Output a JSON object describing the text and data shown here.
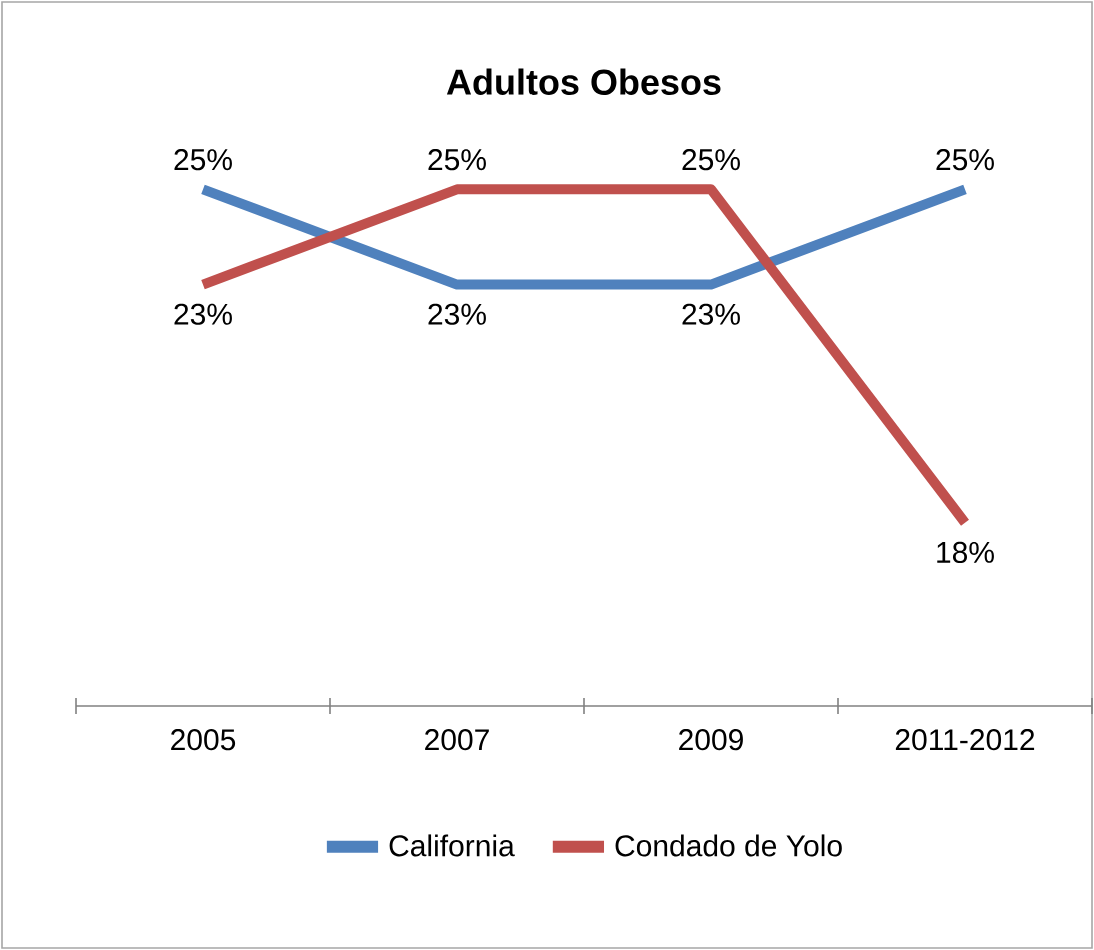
{
  "chart_data": {
    "type": "line",
    "title": "Adultos Obesos",
    "categories": [
      "2005",
      "2007",
      "2009",
      "2011-2012"
    ],
    "series": [
      {
        "name": "California",
        "color": "#4f81bd",
        "values": [
          25,
          23,
          23,
          25
        ],
        "value_labels": [
          "25%",
          "23%",
          "23%",
          "25%"
        ]
      },
      {
        "name": "Condado de Yolo",
        "color": "#c0504d",
        "values": [
          23,
          25,
          25,
          18
        ],
        "value_labels": [
          "23%",
          "25%",
          "25%",
          "18%"
        ]
      }
    ],
    "tick_labels": "x",
    "legend": "bottom",
    "grid": false
  }
}
